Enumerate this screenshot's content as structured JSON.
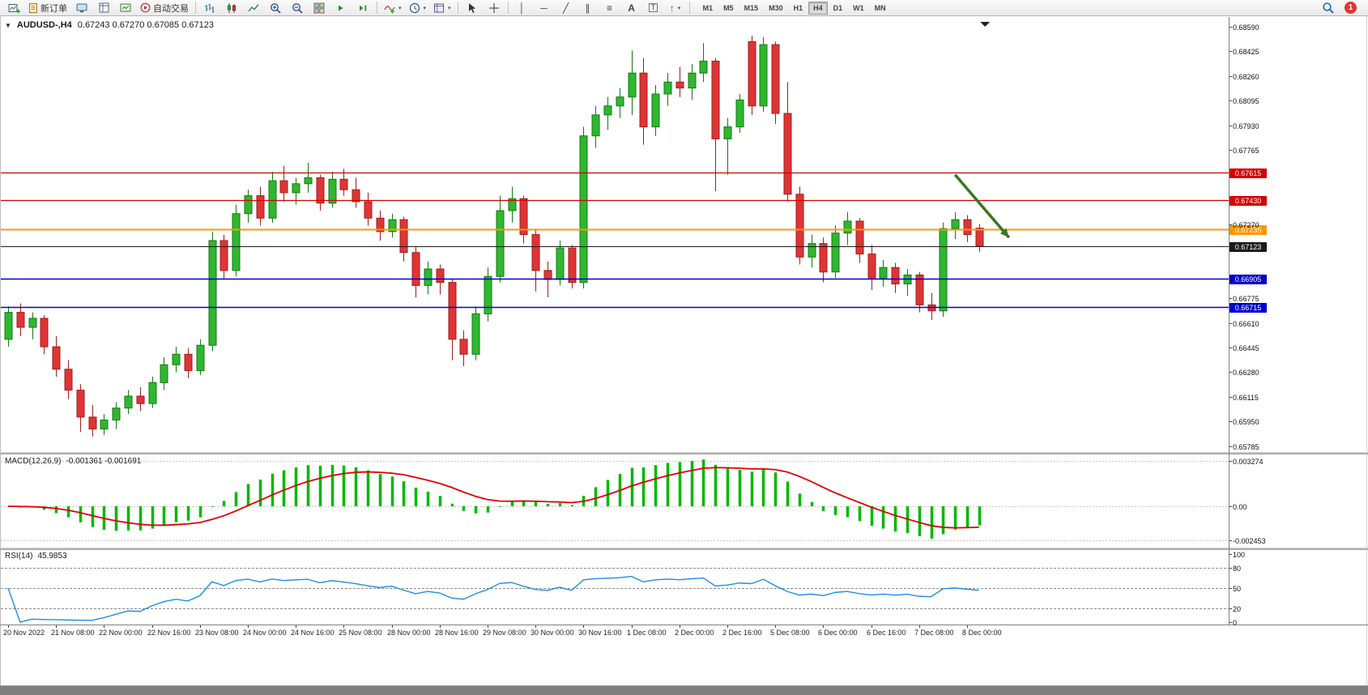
{
  "toolbar": {
    "new_order_label": "新订单",
    "autotrading_label": "自动交易",
    "timeframes": [
      "M1",
      "M5",
      "M15",
      "M30",
      "H1",
      "H4",
      "D1",
      "W1",
      "MN"
    ],
    "active_timeframe": "H4",
    "notification_badge": "1",
    "icon_names": [
      "new-chart-icon",
      "new-order-icon",
      "profiles-icon",
      "data-window-icon",
      "strategy-tester-icon",
      "autotrading-icon",
      "bar-chart-icon",
      "candlestick-chart-icon",
      "line-chart-icon",
      "zoom-in-icon",
      "zoom-out-icon",
      "tile-windows-icon",
      "auto-scroll-icon",
      "chart-shift-icon",
      "indicators-icon",
      "periods-icon",
      "templates-icon",
      "cursor-icon",
      "crosshair-icon",
      "vertical-line-icon",
      "horizontal-line-icon",
      "trendline-icon",
      "channel-icon",
      "fibonacci-icon",
      "text-icon",
      "text-label-icon",
      "arrows-icon",
      "search-icon"
    ]
  },
  "chart": {
    "symbol_title": "AUDUSD-,H4",
    "ohlc_text": "0.67243 0.67270 0.67085 0.67123",
    "price_axis_ticks": [
      "0.68590",
      "0.68425",
      "0.68260",
      "0.68095",
      "0.67930",
      "0.67765",
      "0.67270",
      "0.66775",
      "0.66610",
      "0.66445",
      "0.66280",
      "0.66115",
      "0.65950",
      "0.65785"
    ],
    "macd": {
      "label": "MACD(12,26,9)",
      "values": "-0.001361 -0.001691",
      "axis_labels": [
        "0.003274",
        "0.00",
        "-0.002453"
      ]
    },
    "rsi": {
      "label": "RSI(14)",
      "value": "45.9853",
      "axis_labels": [
        "100",
        "80",
        "50",
        "20",
        "0"
      ],
      "levels": [
        80,
        50,
        20
      ]
    }
  },
  "chart_data": {
    "type": "candlestick",
    "symbol": "AUDUSD-",
    "timeframe": "H4",
    "y_range": [
      0.65741,
      0.68633
    ],
    "label_every_n_candles": 4,
    "x_labels": [
      "20 Nov 2022",
      "21 Nov 08:00",
      "22 Nov 00:00",
      "22 Nov 16:00",
      "23 Nov 08:00",
      "24 Nov 00:00",
      "24 Nov 16:00",
      "25 Nov 08:00",
      "28 Nov 00:00",
      "28 Nov 16:00",
      "29 Nov 08:00",
      "30 Nov 00:00",
      "30 Nov 16:00",
      "1 Dec 08:00",
      "2 Dec 00:00",
      "2 Dec 16:00",
      "5 Dec 08:00",
      "6 Dec 00:00",
      "6 Dec 16:00",
      "7 Dec 08:00",
      "8 Dec 00:00"
    ],
    "candles_ohlc": [
      [
        0.665,
        0.6672,
        0.6645,
        0.6668
      ],
      [
        0.6668,
        0.6674,
        0.6652,
        0.6658
      ],
      [
        0.6658,
        0.6668,
        0.665,
        0.6664
      ],
      [
        0.6664,
        0.6666,
        0.664,
        0.6645
      ],
      [
        0.6645,
        0.6652,
        0.6625,
        0.663
      ],
      [
        0.663,
        0.6636,
        0.661,
        0.6616
      ],
      [
        0.6616,
        0.662,
        0.6588,
        0.6598
      ],
      [
        0.6598,
        0.6606,
        0.6585,
        0.659
      ],
      [
        0.659,
        0.66,
        0.6586,
        0.6596
      ],
      [
        0.6596,
        0.6608,
        0.659,
        0.6604
      ],
      [
        0.6604,
        0.6616,
        0.66,
        0.6612
      ],
      [
        0.6612,
        0.6618,
        0.6602,
        0.6607
      ],
      [
        0.6607,
        0.6625,
        0.6604,
        0.6621
      ],
      [
        0.6621,
        0.6638,
        0.6616,
        0.6633
      ],
      [
        0.6633,
        0.6645,
        0.6628,
        0.664
      ],
      [
        0.664,
        0.6644,
        0.6624,
        0.6629
      ],
      [
        0.6629,
        0.665,
        0.6626,
        0.6646
      ],
      [
        0.6646,
        0.6722,
        0.6642,
        0.6716
      ],
      [
        0.6716,
        0.672,
        0.669,
        0.6696
      ],
      [
        0.6696,
        0.674,
        0.6692,
        0.6734
      ],
      [
        0.6734,
        0.675,
        0.6728,
        0.6746
      ],
      [
        0.6746,
        0.6752,
        0.6726,
        0.6731
      ],
      [
        0.6731,
        0.6762,
        0.6728,
        0.6756
      ],
      [
        0.6756,
        0.6766,
        0.6742,
        0.6748
      ],
      [
        0.6748,
        0.6758,
        0.674,
        0.6754
      ],
      [
        0.6754,
        0.6768,
        0.6748,
        0.6758
      ],
      [
        0.6758,
        0.676,
        0.6736,
        0.6741
      ],
      [
        0.6741,
        0.6762,
        0.6738,
        0.6757
      ],
      [
        0.6757,
        0.6764,
        0.6746,
        0.675
      ],
      [
        0.675,
        0.6758,
        0.6738,
        0.6742
      ],
      [
        0.6742,
        0.6748,
        0.6726,
        0.6731
      ],
      [
        0.6731,
        0.6736,
        0.6716,
        0.6722
      ],
      [
        0.6722,
        0.6734,
        0.6718,
        0.673
      ],
      [
        0.673,
        0.6732,
        0.6702,
        0.6708
      ],
      [
        0.6708,
        0.6712,
        0.6678,
        0.6686
      ],
      [
        0.6686,
        0.6702,
        0.668,
        0.6697
      ],
      [
        0.6697,
        0.67,
        0.668,
        0.6688
      ],
      [
        0.6688,
        0.669,
        0.6636,
        0.665
      ],
      [
        0.665,
        0.6656,
        0.6632,
        0.664
      ],
      [
        0.664,
        0.6672,
        0.6636,
        0.6667
      ],
      [
        0.6667,
        0.6698,
        0.6662,
        0.6692
      ],
      [
        0.6692,
        0.6746,
        0.6688,
        0.6736
      ],
      [
        0.6736,
        0.6752,
        0.6728,
        0.6744
      ],
      [
        0.6744,
        0.6746,
        0.6714,
        0.672
      ],
      [
        0.672,
        0.6724,
        0.6682,
        0.6696
      ],
      [
        0.6696,
        0.6702,
        0.6678,
        0.669
      ],
      [
        0.669,
        0.6716,
        0.6686,
        0.6711
      ],
      [
        0.6711,
        0.6713,
        0.6684,
        0.6688
      ],
      [
        0.6688,
        0.6792,
        0.6684,
        0.6786
      ],
      [
        0.6786,
        0.6806,
        0.6778,
        0.68
      ],
      [
        0.68,
        0.6812,
        0.679,
        0.6806
      ],
      [
        0.6806,
        0.6818,
        0.6798,
        0.6812
      ],
      [
        0.6812,
        0.6843,
        0.68,
        0.6828
      ],
      [
        0.6828,
        0.6838,
        0.678,
        0.6792
      ],
      [
        0.6792,
        0.682,
        0.6786,
        0.6814
      ],
      [
        0.6814,
        0.6828,
        0.6806,
        0.6822
      ],
      [
        0.6822,
        0.6832,
        0.6812,
        0.6818
      ],
      [
        0.6818,
        0.6834,
        0.681,
        0.6828
      ],
      [
        0.6828,
        0.6848,
        0.6822,
        0.6836
      ],
      [
        0.6836,
        0.6838,
        0.6749,
        0.6784
      ],
      [
        0.6784,
        0.6798,
        0.676,
        0.6792
      ],
      [
        0.6792,
        0.6814,
        0.6788,
        0.681
      ],
      [
        0.6849,
        0.6853,
        0.68,
        0.6806
      ],
      [
        0.6806,
        0.6852,
        0.6802,
        0.6847
      ],
      [
        0.6847,
        0.6849,
        0.6794,
        0.6801
      ],
      [
        0.6801,
        0.6822,
        0.6742,
        0.6747
      ],
      [
        0.6747,
        0.6752,
        0.67,
        0.6705
      ],
      [
        0.6705,
        0.672,
        0.6698,
        0.6714
      ],
      [
        0.6714,
        0.6718,
        0.6688,
        0.6695
      ],
      [
        0.6695,
        0.6726,
        0.6691,
        0.6721
      ],
      [
        0.6721,
        0.6735,
        0.6713,
        0.6729
      ],
      [
        0.6729,
        0.6731,
        0.6701,
        0.6707
      ],
      [
        0.6707,
        0.6713,
        0.6683,
        0.6691
      ],
      [
        0.6691,
        0.6703,
        0.6685,
        0.6698
      ],
      [
        0.6698,
        0.6701,
        0.6681,
        0.6687
      ],
      [
        0.6687,
        0.6697,
        0.6679,
        0.6693
      ],
      [
        0.6693,
        0.6695,
        0.6668,
        0.6673
      ],
      [
        0.6673,
        0.6681,
        0.6663,
        0.6669
      ],
      [
        0.6669,
        0.6728,
        0.6665,
        0.6724
      ],
      [
        0.6724,
        0.6735,
        0.6717,
        0.673
      ],
      [
        0.673,
        0.6733,
        0.6715,
        0.672
      ],
      [
        0.67243,
        0.6727,
        0.67085,
        0.67123
      ]
    ],
    "hlines": [
      {
        "price": 0.67615,
        "color": "#d40000",
        "type": "resistance"
      },
      {
        "price": 0.6743,
        "color": "#d40000",
        "type": "resistance"
      },
      {
        "price": 0.67235,
        "color": "#ff9800",
        "type": "pivot"
      },
      {
        "price": 0.67123,
        "color": "#1a1a1a",
        "type": "current-price"
      },
      {
        "price": 0.66905,
        "color": "#0000cc",
        "type": "support"
      },
      {
        "price": 0.66715,
        "color": "#0000cc",
        "type": "support"
      }
    ],
    "indicators": [
      {
        "type": "MACD",
        "params": [
          12,
          26,
          9
        ],
        "last_values": [
          -0.001361,
          -0.001691
        ]
      },
      {
        "type": "RSI",
        "params": [
          14
        ],
        "last_value": 45.9853,
        "levels": [
          80,
          50,
          20
        ]
      }
    ],
    "annotation_arrow": {
      "from_index": 79,
      "from_price": 0.676,
      "to_index": 83.5,
      "to_price": 0.6718,
      "color": "#3c761d"
    }
  }
}
